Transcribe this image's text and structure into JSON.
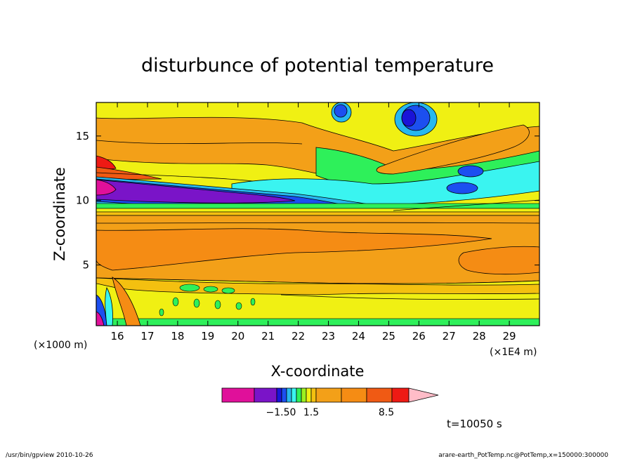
{
  "chart_data": {
    "type": "heatmap",
    "title": "disturbunce of potential temperature",
    "xlabel": "X-coordinate",
    "ylabel": "Z-coordinate",
    "x_unit_left": "(×1000 m)",
    "x_unit_right": "(×1E4 m)",
    "x_ticks": [
      "16",
      "17",
      "18",
      "19",
      "20",
      "21",
      "22",
      "23",
      "24",
      "25",
      "26",
      "27",
      "28",
      "29"
    ],
    "y_ticks": [
      "5",
      "10",
      "15"
    ],
    "xlim": [
      15.3,
      30.0
    ],
    "ylim": [
      0.3,
      17.6
    ],
    "colorbar": {
      "colors": [
        "#e0109a",
        "#7a14c8",
        "#1a14d8",
        "#1c4ff0",
        "#27b8ee",
        "#3af4f0",
        "#2ef05a",
        "#9cf020",
        "#f0f013",
        "#f4c010",
        "#f3a018",
        "#f58c14",
        "#f05a14",
        "#ee1a14",
        "#fa7878",
        "#ffbcc8"
      ],
      "labels": [
        "−1.50",
        "1.5",
        "8.5"
      ]
    },
    "regions": [
      {
        "name": "upper-yellow-band",
        "value": "yellow"
      },
      {
        "name": "upper-orange-layer",
        "value": "orange"
      },
      {
        "name": "cold-anomaly-tongue",
        "value": "purple"
      },
      {
        "name": "stable-inversion",
        "value": "cyan"
      },
      {
        "name": "lower-orange-layer",
        "value": "orange"
      },
      {
        "name": "surface-yellow-layer",
        "value": "yellow"
      }
    ],
    "time_label": "t=10050 s"
  },
  "footer": {
    "left": "/usr/bin/gpview   2010-10-26",
    "right": "arare-earth_PotTemp.nc@PotTemp,x=150000:300000"
  }
}
